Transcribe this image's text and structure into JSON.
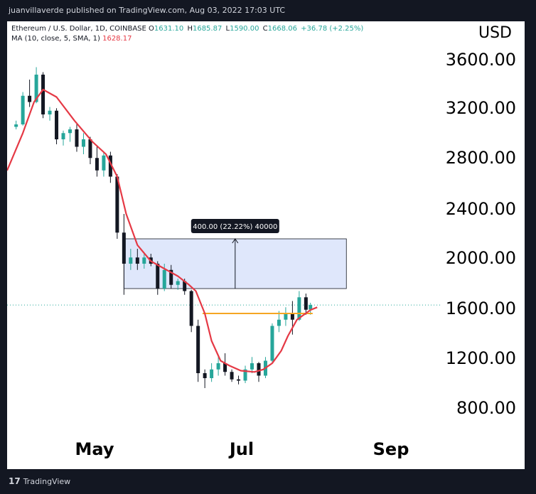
{
  "header": {
    "published": "juanvillaverde published on TradingView.com, Aug 03, 2022 17:03 UTC"
  },
  "legend": {
    "symbol": "Ethereum / U.S. Dollar, 1D, COINBASE",
    "ohlc": [
      {
        "label": "O",
        "value": "1631.10"
      },
      {
        "label": "H",
        "value": "1685.87"
      },
      {
        "label": "L",
        "value": "1590.00"
      },
      {
        "label": "C",
        "value": "1668.06"
      }
    ],
    "change": "+36.78 (+2.25%)",
    "ma_label": "MA (10, close, 5, SMA, 1)",
    "ma_value": "1628.17"
  },
  "axis": {
    "currency": "USD",
    "price_ticks": [
      "3600.00",
      "3200.00",
      "2800.00",
      "2400.00",
      "2000.00",
      "1600.00",
      "1200.00",
      "800.00"
    ],
    "time_ticks": [
      "May",
      "Jul",
      "Sep"
    ]
  },
  "footer": {
    "brand": "TradingView",
    "logo_icon": "tradingview-logo-icon"
  },
  "colors": {
    "up": "#26a69a",
    "down": "#131722",
    "ma": "#e53945",
    "level": "#f5a623",
    "range_fill": "#dfe7fb",
    "range_stroke": "#131722",
    "current_price_line": "#26a69a"
  },
  "chart_data": {
    "type": "candlestick",
    "ylim": [
      600,
      3900
    ],
    "xlim": [
      "2022-03-21",
      "2022-09-30"
    ],
    "series": [
      {
        "name": "Ethereum / U.S. Dollar, 1D, COINBASE",
        "kind": "candles",
        "points": [
          [
            "2022-03-25",
            3100,
            3150,
            3080,
            3120
          ],
          [
            "2022-03-28",
            3120,
            3380,
            3110,
            3350
          ],
          [
            "2022-03-31",
            3350,
            3480,
            3260,
            3300
          ],
          [
            "2022-04-03",
            3300,
            3580,
            3290,
            3520
          ],
          [
            "2022-04-06",
            3520,
            3540,
            3170,
            3200
          ],
          [
            "2022-04-09",
            3200,
            3260,
            3150,
            3230
          ],
          [
            "2022-04-12",
            3230,
            3250,
            2960,
            3000
          ],
          [
            "2022-04-15",
            3000,
            3070,
            2950,
            3050
          ],
          [
            "2022-04-18",
            3050,
            3100,
            2980,
            3080
          ],
          [
            "2022-04-21",
            3080,
            3120,
            2900,
            2940
          ],
          [
            "2022-04-24",
            2940,
            3050,
            2880,
            3000
          ],
          [
            "2022-04-27",
            3000,
            3020,
            2800,
            2850
          ],
          [
            "2022-04-30",
            2850,
            2950,
            2700,
            2750
          ],
          [
            "2022-05-03",
            2750,
            2900,
            2700,
            2870
          ],
          [
            "2022-05-06",
            2870,
            2900,
            2650,
            2700
          ],
          [
            "2022-05-09",
            2700,
            2720,
            2200,
            2250
          ],
          [
            "2022-05-12",
            2250,
            2400,
            1750,
            2000
          ],
          [
            "2022-05-15",
            2000,
            2120,
            1950,
            2050
          ],
          [
            "2022-05-18",
            2050,
            2120,
            1950,
            2000
          ],
          [
            "2022-05-21",
            2000,
            2080,
            1960,
            2050
          ],
          [
            "2022-05-24",
            2050,
            2080,
            1980,
            2000
          ],
          [
            "2022-05-27",
            2000,
            2020,
            1750,
            1800
          ],
          [
            "2022-05-30",
            1800,
            2000,
            1780,
            1950
          ],
          [
            "2022-06-02",
            1950,
            1990,
            1800,
            1830
          ],
          [
            "2022-06-05",
            1830,
            1880,
            1790,
            1860
          ],
          [
            "2022-06-08",
            1860,
            1880,
            1750,
            1780
          ],
          [
            "2022-06-11",
            1780,
            1790,
            1450,
            1500
          ],
          [
            "2022-06-14",
            1500,
            1550,
            1050,
            1120
          ],
          [
            "2022-06-17",
            1120,
            1150,
            1000,
            1080
          ],
          [
            "2022-06-20",
            1080,
            1200,
            1050,
            1150
          ],
          [
            "2022-06-23",
            1150,
            1250,
            1100,
            1200
          ],
          [
            "2022-06-26",
            1200,
            1280,
            1100,
            1130
          ],
          [
            "2022-06-29",
            1130,
            1150,
            1050,
            1070
          ],
          [
            "2022-07-02",
            1070,
            1100,
            1030,
            1060
          ],
          [
            "2022-07-05",
            1060,
            1180,
            1040,
            1150
          ],
          [
            "2022-07-08",
            1150,
            1250,
            1120,
            1200
          ],
          [
            "2022-07-11",
            1200,
            1210,
            1050,
            1100
          ],
          [
            "2022-07-14",
            1100,
            1250,
            1080,
            1220
          ],
          [
            "2022-07-17",
            1220,
            1520,
            1200,
            1500
          ],
          [
            "2022-07-20",
            1500,
            1620,
            1450,
            1550
          ],
          [
            "2022-07-23",
            1550,
            1650,
            1500,
            1600
          ],
          [
            "2022-07-26",
            1600,
            1700,
            1430,
            1550
          ],
          [
            "2022-07-29",
            1550,
            1780,
            1540,
            1730
          ],
          [
            "2022-08-01",
            1730,
            1760,
            1590,
            1630
          ],
          [
            "2022-08-03",
            1631.1,
            1685.87,
            1590,
            1668.06
          ]
        ]
      },
      {
        "name": "MA (10, close, 5, SMA, 1)",
        "kind": "line",
        "points": [
          [
            "2022-03-21",
            2750
          ],
          [
            "2022-03-28",
            3050
          ],
          [
            "2022-04-02",
            3300
          ],
          [
            "2022-04-06",
            3400
          ],
          [
            "2022-04-12",
            3340
          ],
          [
            "2022-04-20",
            3150
          ],
          [
            "2022-04-28",
            2980
          ],
          [
            "2022-05-04",
            2880
          ],
          [
            "2022-05-09",
            2700
          ],
          [
            "2022-05-13",
            2400
          ],
          [
            "2022-05-18",
            2150
          ],
          [
            "2022-05-24",
            2020
          ],
          [
            "2022-05-30",
            1960
          ],
          [
            "2022-06-05",
            1900
          ],
          [
            "2022-06-10",
            1830
          ],
          [
            "2022-06-13",
            1780
          ],
          [
            "2022-06-17",
            1600
          ],
          [
            "2022-06-20",
            1380
          ],
          [
            "2022-06-24",
            1220
          ],
          [
            "2022-06-28",
            1180
          ],
          [
            "2022-07-03",
            1140
          ],
          [
            "2022-07-09",
            1130
          ],
          [
            "2022-07-13",
            1150
          ],
          [
            "2022-07-17",
            1200
          ],
          [
            "2022-07-21",
            1300
          ],
          [
            "2022-07-24",
            1420
          ],
          [
            "2022-07-28",
            1550
          ],
          [
            "2022-08-03",
            1628.17
          ],
          [
            "2022-08-06",
            1650
          ]
        ]
      }
    ],
    "measure": {
      "x_start": "2022-05-12",
      "x_end": "2022-08-19",
      "y_low": 1800,
      "y_high": 2200,
      "label": "400.00 (22.22%) 40000"
    },
    "horizontal_line": {
      "x_start": "2022-06-16",
      "x_end": "2022-08-04",
      "y": 1600
    },
    "current_price": 1668.06
  }
}
